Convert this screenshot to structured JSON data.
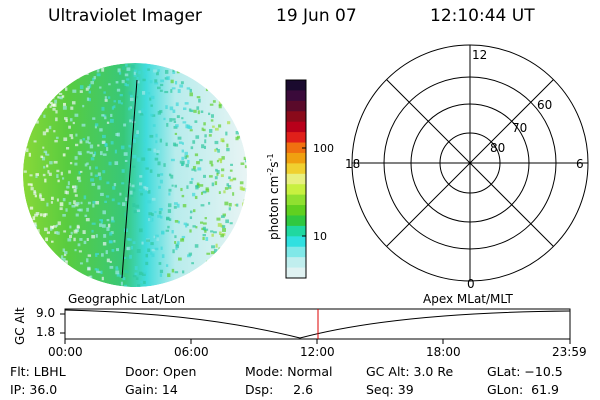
{
  "header": {
    "title": "Ultraviolet Imager",
    "date": "19 Jun 07",
    "time": "12:10:44 UT"
  },
  "colorbar": {
    "label": "photon cm",
    "label_exp1": "-2",
    "label_mid": "s",
    "label_exp2": "-1",
    "ticks": [
      "100",
      "10"
    ],
    "colors": [
      "#1a0a2e",
      "#3a0a3a",
      "#5a0a2a",
      "#8a0a1a",
      "#b8001a",
      "#e0201a",
      "#f07010",
      "#f0a010",
      "#f0d030",
      "#e8f080",
      "#c8f040",
      "#90e030",
      "#60d020",
      "#30c840",
      "#20d8a0",
      "#30e0e0",
      "#80e8e8",
      "#c0eeee",
      "#e0f2f2"
    ]
  },
  "polar": {
    "mlt_labels": [
      "12",
      "18",
      "6",
      "0"
    ],
    "lat_labels": [
      "60",
      "70",
      "80"
    ]
  },
  "timeline": {
    "y_label": "GC Alt",
    "y_ticks": [
      "9.0",
      "1.8"
    ],
    "left_caption": "Geographic Lat/Lon",
    "right_caption": "Apex  MLat/MLT",
    "x_ticks": [
      "00:00",
      "06:00",
      "12:00",
      "18:00",
      "23:59"
    ]
  },
  "info": {
    "row1": [
      "Flt: LBHL",
      "Door: Open",
      "Mode: Normal",
      "GC Alt: 3.0 Re",
      "GLat: −10.5"
    ],
    "row2": [
      "IP: 36.0",
      "Gain: 14",
      "Dsp:     2.6",
      "Seq: 39",
      "GLon:  61.9"
    ]
  }
}
